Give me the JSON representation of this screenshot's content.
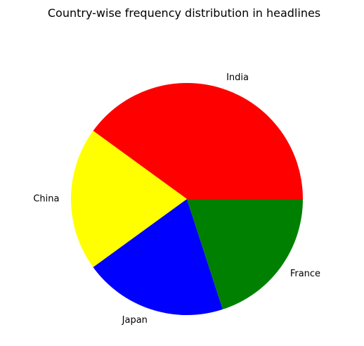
{
  "chart_data": {
    "type": "pie",
    "title": "Country-wise frequency distribution in headlines",
    "start_angle_deg": 0,
    "direction": "counterclockwise",
    "slices": [
      {
        "label": "India",
        "value": 2,
        "color": "#ff0000"
      },
      {
        "label": "China",
        "value": 1,
        "color": "#ffff00"
      },
      {
        "label": "Japan",
        "value": 1,
        "color": "#0000ff"
      },
      {
        "label": "France",
        "value": 1,
        "color": "#008000"
      }
    ]
  }
}
